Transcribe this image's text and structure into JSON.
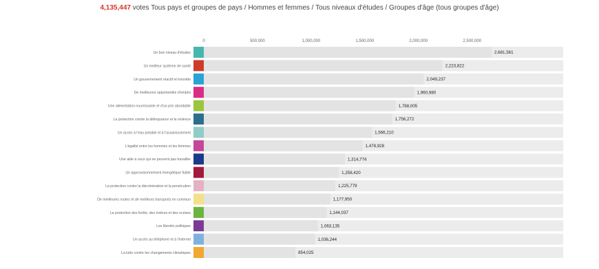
{
  "header": {
    "votes_count": "4,135,447",
    "title": "votes Tous pays et groupes de pays / Hommes et femmes / Tous niveaux d'études / Groupes d'âge (tous groupes d'âge)"
  },
  "chart_data": {
    "type": "bar",
    "orientation": "horizontal",
    "title": "votes Tous pays et groupes de pays / Hommes et femmes / Tous niveaux d'études / Groupes d'âge (tous groupes d'âge)",
    "xlabel": "",
    "ylabel": "",
    "xlim": [
      0,
      2850000
    ],
    "grid": false,
    "legend": "none",
    "total_votes": 4135447,
    "x_ticks": [
      {
        "value": 0,
        "label": "0"
      },
      {
        "value": 500000,
        "label": "500,000"
      },
      {
        "value": 1000000,
        "label": "1,000,000"
      },
      {
        "value": 1500000,
        "label": "1,500,000"
      },
      {
        "value": 2000000,
        "label": "2,000,000"
      },
      {
        "value": 2500000,
        "label": "2,500,000"
      }
    ],
    "categories": [
      "Un bon niveau d'études",
      "Un meilleur système de santé",
      "Un gouvernement réactif et honnête",
      "De meilleures opportunités d'emploi",
      "Une alimentation nourrissante et d'un prix abordable",
      "La protection contre la délinquance et la violence",
      "Un accès à l'eau potable et à l'assainissement",
      "L'égalité entre les hommes et les femmes",
      "Une aide à ceux qui ne peuvent pas travailler",
      "Un approvisionnement énergétique fiable",
      "La protection contre la discrimination et la persécution",
      "De meilleures routes et de meilleurs transports en commun",
      "La protection des forêts, des rivières et des océans",
      "Les libertés politiques",
      "Un accès au téléphone et à l'internet",
      "La lutte contre les changements climatiques"
    ],
    "values": [
      2681561,
      2223822,
      2049237,
      1960980,
      1788005,
      1756272,
      1566210,
      1478928,
      1314774,
      1258420,
      1225779,
      1177950,
      1144037,
      1063135,
      1036244,
      854025
    ],
    "value_labels": [
      "2,681,561",
      "2,223,822",
      "2,049,237",
      "1,960,980",
      "1,788,005",
      "1,756,272",
      "1,566,210",
      "1,478,928",
      "1,314,774",
      "1,258,420",
      "1,225,779",
      "1,177,950",
      "1,144,037",
      "1,063,135",
      "1,036,244",
      "854,025"
    ],
    "colors": [
      "#45b7af",
      "#cf3b2b",
      "#29a3d6",
      "#d92d85",
      "#9bc53d",
      "#2b6f8c",
      "#8fcdc6",
      "#c4479a",
      "#1c3a8a",
      "#a2193d",
      "#e3b3c3",
      "#f4e08a",
      "#6db33f",
      "#7a3a96",
      "#7eb1de",
      "#f0a830"
    ],
    "track_color": "#ececec"
  }
}
